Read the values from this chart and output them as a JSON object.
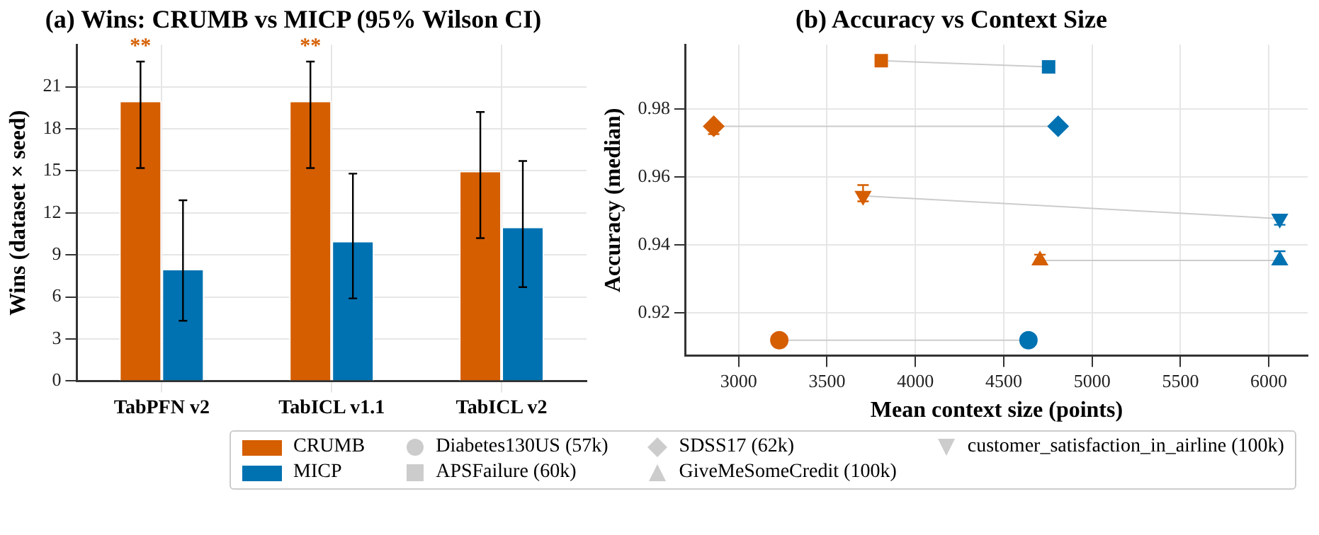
{
  "chart_data": [
    {
      "type": "bar",
      "title": "(a) Wins: CRUMB vs MICP (95% Wilson CI)",
      "ylabel": "Wins (dataset × seed)",
      "categories": [
        "TabPFN v2",
        "TabICL v1.1",
        "TabICL v2"
      ],
      "series": [
        {
          "name": "CRUMB",
          "color": "#d55e00",
          "values": [
            20,
            20,
            15
          ],
          "errors": [
            [
              15.2,
              22.8
            ],
            [
              15.2,
              22.8
            ],
            [
              10.2,
              19.2
            ]
          ]
        },
        {
          "name": "MICP",
          "color": "#0072b2",
          "values": [
            8,
            10,
            11
          ],
          "errors": [
            [
              4.3,
              12.9
            ],
            [
              5.9,
              14.8
            ],
            [
              6.7,
              15.7
            ]
          ]
        }
      ],
      "ylim": [
        0,
        24
      ],
      "yticks": [
        0,
        3,
        6,
        9,
        12,
        15,
        18,
        21
      ],
      "grid": true,
      "legend": "bottom",
      "annotations": [
        "**",
        "**"
      ]
    },
    {
      "type": "scatter",
      "title": "(b) Accuracy vs Context Size",
      "xlabel": "Mean context size (points)",
      "ylabel": "Accuracy (median)",
      "series": [
        {
          "name": "Diabetes130US (57k)",
          "type": "line",
          "color": "#cccccc",
          "colors": [
            "#d55e00",
            "#0072b2"
          ],
          "marker": "circle",
          "x": [
            3230,
            4640
          ],
          "values": [
            0.912,
            0.912
          ],
          "errors": [
            null,
            null
          ]
        },
        {
          "name": "APSFailure (60k)",
          "type": "line",
          "color": "#cccccc",
          "colors": [
            "#d55e00",
            "#0072b2"
          ],
          "marker": "square",
          "x": [
            3807,
            4754
          ],
          "values": [
            0.9943,
            0.9925
          ],
          "errors": [
            null,
            null
          ]
        },
        {
          "name": "SDSS17 (62k)",
          "type": "line",
          "color": "#cccccc",
          "colors": [
            "#d55e00",
            "#0072b2"
          ],
          "marker": "diamond",
          "x": [
            2859,
            4808
          ],
          "values": [
            0.975,
            0.975
          ],
          "errors": [
            [
              0.9727,
              0.976
            ],
            null
          ]
        },
        {
          "name": "GiveMeSomeCredit (100k)",
          "type": "line",
          "color": "#cccccc",
          "colors": [
            "#d55e00",
            "#0072b2"
          ],
          "marker": "triangle",
          "x": [
            4705,
            6062
          ],
          "values": [
            0.9355,
            0.9355
          ],
          "errors": [
            [
              0.9345,
              0.9372
            ],
            [
              0.9345,
              0.9382
            ]
          ]
        },
        {
          "name": "customer_satisfaction_in_airline (100k)",
          "type": "line",
          "color": "#cccccc",
          "colors": [
            "#d55e00",
            "#0072b2"
          ],
          "marker": "triangle-down",
          "x": [
            3704,
            6062
          ],
          "values": [
            0.9545,
            0.9478
          ],
          "errors": [
            [
              0.9529,
              0.9577
            ],
            [
              0.946,
              0.949
            ]
          ]
        }
      ],
      "xlim": [
        2700,
        6220
      ],
      "xticks": [
        3000,
        3500,
        4000,
        4500,
        5000,
        5500,
        6000
      ],
      "ylim": [
        0.9075,
        0.999
      ],
      "yticks": [
        0.92,
        0.94,
        0.96,
        0.98
      ],
      "grid": true,
      "legend": "bottom"
    }
  ]
}
